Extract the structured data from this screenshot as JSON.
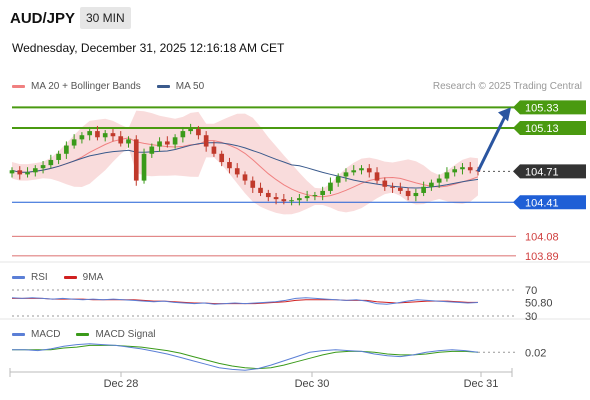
{
  "header": {
    "symbol": "AUD/JPY",
    "interval": "30 MIN",
    "datetime": "Wednesday, December 31, 2025 12:16:18 AM CET"
  },
  "legend_main": [
    {
      "label": "MA 20 + Bollinger Bands",
      "color": "#f08080"
    },
    {
      "label": "MA 50",
      "color": "#3a5a8c"
    }
  ],
  "research": "Research © 2025 Trading Central",
  "legend_rsi": [
    {
      "label": "RSI",
      "color": "#5b7fd6"
    },
    {
      "label": "9MA",
      "color": "#d02020"
    }
  ],
  "legend_macd": [
    {
      "label": "MACD",
      "color": "#5b7fd6"
    },
    {
      "label": "MACD Signal",
      "color": "#3a9a1a"
    }
  ],
  "colors": {
    "resistance": "#4a9a10",
    "support": "#1f5fd6",
    "minor": "#d04040",
    "current": "#333333",
    "up_candle": "#3a9a1a",
    "down_candle": "#c0392b",
    "band_fill": "#f8d3d3",
    "arrow": "#2a55a0"
  },
  "chart_data": [
    {
      "type": "candlestick",
      "title": "AUD/JPY",
      "x_ticks": [
        "Dec 28",
        "Dec 30",
        "Dec 31"
      ],
      "ylim": [
        103.85,
        105.45
      ],
      "closes": [
        104.72,
        104.68,
        104.7,
        104.74,
        104.77,
        104.82,
        104.88,
        104.96,
        105.02,
        105.06,
        105.1,
        105.04,
        105.08,
        105.05,
        104.98,
        105.02,
        104.62,
        104.88,
        104.95,
        105.0,
        104.97,
        105.04,
        105.1,
        105.12,
        105.06,
        104.95,
        104.88,
        104.8,
        104.74,
        104.68,
        104.62,
        104.55,
        104.5,
        104.46,
        104.44,
        104.42,
        104.43,
        104.45,
        104.47,
        104.48,
        104.52,
        104.6,
        104.66,
        104.7,
        104.72,
        104.74,
        104.7,
        104.62,
        104.56,
        104.55,
        104.52,
        104.47,
        104.5,
        104.56,
        104.6,
        104.64,
        104.7,
        104.73,
        104.75,
        104.72,
        104.71
      ],
      "levels": [
        {
          "value": 105.33,
          "label": "105.33",
          "kind": "resistance"
        },
        {
          "value": 105.13,
          "label": "105.13",
          "kind": "resistance"
        },
        {
          "value": 104.71,
          "label": "104.71",
          "kind": "current"
        },
        {
          "value": 104.41,
          "label": "104.41",
          "kind": "support"
        },
        {
          "value": 104.08,
          "label": "104.08",
          "kind": "minor"
        },
        {
          "value": 103.89,
          "label": "103.89",
          "kind": "minor"
        }
      ],
      "series": [
        {
          "name": "MA 20 + Bollinger Bands"
        },
        {
          "name": "MA 50"
        }
      ]
    },
    {
      "type": "line",
      "title": "RSI",
      "ylim": [
        30,
        70
      ],
      "y_ticks": [
        "70",
        "50.80",
        "30"
      ],
      "value_label": "50.80",
      "series": [
        {
          "name": "RSI",
          "values": [
            58,
            57,
            58,
            57,
            56,
            57,
            56,
            55,
            56,
            55,
            56,
            55,
            54,
            53,
            52,
            53,
            51,
            50,
            49,
            50,
            48,
            49,
            50,
            49,
            50,
            51,
            52,
            54,
            57,
            58,
            57,
            56,
            55,
            54,
            55,
            53,
            49,
            48,
            50,
            53,
            55,
            54,
            53,
            52,
            51,
            50,
            50.8
          ]
        },
        {
          "name": "9MA",
          "values": [
            57,
            57,
            57,
            57,
            56,
            56,
            56,
            56,
            55,
            55,
            55,
            55,
            55,
            54,
            53,
            53,
            52,
            51,
            50,
            50,
            49,
            49,
            49,
            49,
            49,
            50,
            51,
            52,
            54,
            55,
            55,
            55,
            55,
            54,
            54,
            54,
            52,
            51,
            50,
            51,
            52,
            53,
            53,
            53,
            52,
            51,
            51
          ]
        }
      ]
    },
    {
      "type": "line",
      "title": "MACD",
      "value_label": "0.02",
      "series": [
        {
          "name": "MACD",
          "values": [
            0.05,
            0.05,
            0.04,
            0.06,
            0.09,
            0.11,
            0.12,
            0.11,
            0.1,
            0.08,
            0.06,
            0.03,
            0.0,
            -0.04,
            -0.08,
            -0.12,
            -0.16,
            -0.18,
            -0.19,
            -0.17,
            -0.13,
            -0.08,
            -0.03,
            0.02,
            0.04,
            0.05,
            0.04,
            0.03,
            0.0,
            -0.02,
            -0.03,
            -0.01,
            0.02,
            0.04,
            0.05,
            0.04,
            0.02
          ]
        },
        {
          "name": "MACD Signal",
          "values": [
            0.05,
            0.05,
            0.05,
            0.05,
            0.07,
            0.08,
            0.1,
            0.1,
            0.1,
            0.09,
            0.08,
            0.06,
            0.04,
            0.01,
            -0.03,
            -0.07,
            -0.11,
            -0.14,
            -0.16,
            -0.17,
            -0.16,
            -0.13,
            -0.09,
            -0.05,
            -0.01,
            0.02,
            0.03,
            0.03,
            0.02,
            0.0,
            -0.01,
            -0.01,
            0.0,
            0.02,
            0.03,
            0.03,
            0.02
          ]
        }
      ]
    }
  ]
}
